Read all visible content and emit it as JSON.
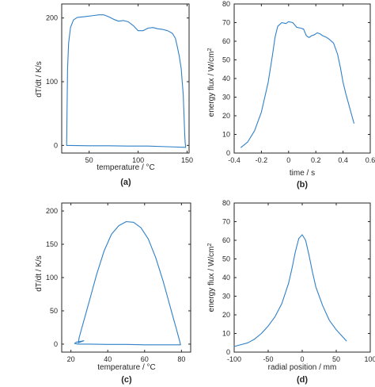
{
  "colors": {
    "series": "#2f80c8",
    "axis": "#262626",
    "background": "#ffffff"
  },
  "chart_data": [
    {
      "type": "line",
      "panel_label": "(a)",
      "xlabel": "temperature / °C",
      "ylabel": "dT/dt / K/s",
      "xlim": [
        22,
        152
      ],
      "ylim": [
        -12,
        222
      ],
      "xticks": [
        50,
        100,
        150
      ],
      "yticks": [
        0,
        100,
        200
      ],
      "grid": false,
      "series": [
        {
          "x": [
            148.5,
            130,
            110,
            90,
            70,
            50,
            30,
            27,
            27.5,
            28,
            29,
            31,
            34,
            38,
            45,
            55,
            60,
            65,
            70,
            75,
            80,
            85,
            90,
            95,
            100,
            105,
            110,
            115,
            120,
            125,
            130,
            135,
            138,
            140,
            142,
            144,
            145,
            146,
            146.5,
            147,
            147.5,
            148,
            148.5
          ],
          "y": [
            -3,
            -2,
            -1,
            -1,
            -0.5,
            -0.5,
            0,
            0,
            60,
            120,
            160,
            185,
            197,
            201,
            202,
            204,
            205,
            205,
            202,
            198,
            195,
            196,
            194,
            188,
            180,
            180,
            184,
            185,
            183,
            182,
            180,
            176,
            168,
            155,
            140,
            120,
            100,
            80,
            60,
            40,
            20,
            5,
            -3
          ]
        }
      ]
    },
    {
      "type": "line",
      "panel_label": "(b)",
      "xlabel": "time / s",
      "ylabel": "energy flux / W/cm²",
      "xlim": [
        -0.4,
        0.6
      ],
      "ylim": [
        0,
        80
      ],
      "xticks": [
        -0.4,
        -0.2,
        0,
        0.2,
        0.4,
        0.6
      ],
      "xtick_labels": [
        "-0.4",
        "-0.2",
        "0",
        "0.2",
        "0.4",
        "0.6"
      ],
      "yticks": [
        0,
        10,
        20,
        30,
        40,
        50,
        60,
        70,
        80
      ],
      "grid": false,
      "series": [
        {
          "x": [
            -0.35,
            -0.3,
            -0.25,
            -0.2,
            -0.15,
            -0.12,
            -0.1,
            -0.08,
            -0.05,
            -0.02,
            0,
            0.03,
            0.06,
            0.09,
            0.11,
            0.13,
            0.15,
            0.17,
            0.19,
            0.21,
            0.23,
            0.25,
            0.28,
            0.3,
            0.33,
            0.36,
            0.38,
            0.4,
            0.42,
            0.45,
            0.48
          ],
          "y": [
            3,
            6,
            12,
            22,
            38,
            52,
            62,
            68,
            70,
            69.5,
            70.5,
            70,
            67.5,
            67,
            66.5,
            63,
            62,
            63,
            63.5,
            64.5,
            64,
            63,
            62,
            61,
            59,
            53,
            46,
            38,
            32,
            24,
            16
          ]
        }
      ]
    },
    {
      "type": "line",
      "panel_label": "(c)",
      "xlabel": "temperature / °C",
      "ylabel": "dT/dt / K/s",
      "xlim": [
        15,
        85
      ],
      "ylim": [
        -12,
        212
      ],
      "xticks": [
        20,
        40,
        60,
        80
      ],
      "yticks": [
        0,
        50,
        100,
        150,
        200
      ],
      "grid": false,
      "series": [
        {
          "x": [
            79.5,
            70,
            60,
            50,
            40,
            30,
            24,
            22,
            23,
            25,
            27,
            25,
            24,
            24.5,
            26,
            28,
            31,
            34,
            38,
            42,
            46,
            50,
            54,
            58,
            62,
            66,
            70,
            73,
            75,
            77,
            78,
            79,
            79.5
          ],
          "y": [
            -1,
            -1,
            -1,
            -0.5,
            -0.5,
            0,
            0,
            1,
            3,
            4,
            5,
            3,
            2,
            10,
            25,
            45,
            75,
            105,
            140,
            165,
            178,
            184,
            183,
            175,
            158,
            130,
            95,
            65,
            45,
            25,
            15,
            5,
            -1
          ]
        }
      ]
    },
    {
      "type": "line",
      "panel_label": "(d)",
      "xlabel": "radial position / mm",
      "ylabel": "energy flux / W/cm²",
      "xlim": [
        -100,
        100
      ],
      "ylim": [
        0,
        80
      ],
      "xticks": [
        -100,
        -50,
        0,
        50,
        100
      ],
      "yticks": [
        0,
        10,
        20,
        30,
        40,
        50,
        60,
        70,
        80
      ],
      "grid": false,
      "series": [
        {
          "x": [
            -100,
            -90,
            -80,
            -70,
            -60,
            -50,
            -40,
            -30,
            -20,
            -15,
            -10,
            -5,
            0,
            5,
            10,
            15,
            20,
            30,
            40,
            50,
            60,
            65
          ],
          "y": [
            3,
            4,
            5,
            7,
            10,
            14,
            19,
            26,
            37,
            45,
            54,
            61,
            63,
            60,
            52,
            43,
            35,
            25,
            17,
            12,
            8,
            6
          ]
        }
      ]
    }
  ]
}
